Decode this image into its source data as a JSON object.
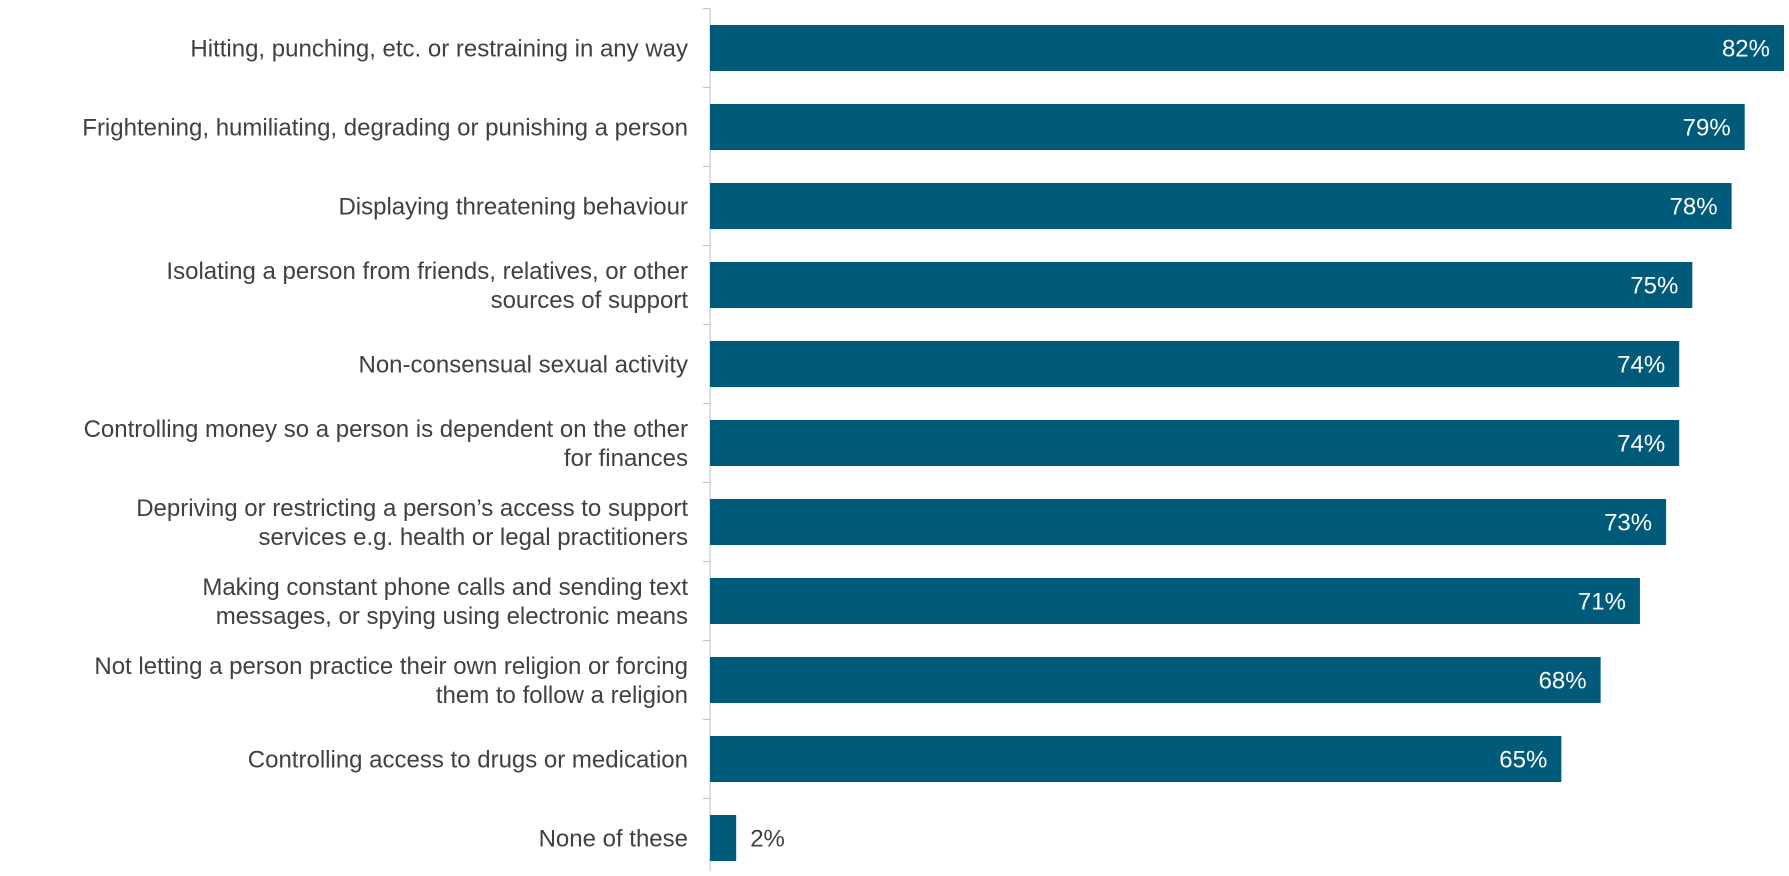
{
  "chart_data": {
    "type": "bar",
    "orientation": "horizontal",
    "categories": [
      "Hitting, punching, etc. or restraining in any way",
      "Frightening, humiliating, degrading or punishing a person",
      "Displaying threatening behaviour",
      "Isolating a person from friends, relatives, or other sources of support",
      "Non-consensual sexual activity",
      "Controlling money so a person is dependent on the other for finances",
      "Depriving or restricting a person’s access to support services e.g. health or legal practitioners",
      "Making constant phone calls and sending text messages, or spying using electronic means",
      "Not letting a person practice their own religion or forcing them to follow a religion",
      "Controlling access to drugs or medication",
      "None of these"
    ],
    "category_lines": [
      [
        "Hitting, punching, etc. or restraining in any way"
      ],
      [
        "Frightening, humiliating, degrading or punishing a person"
      ],
      [
        "Displaying threatening behaviour"
      ],
      [
        "Isolating a person from friends, relatives, or other",
        "sources of support"
      ],
      [
        "Non-consensual sexual activity"
      ],
      [
        "Controlling money so a person is dependent on the other",
        "for finances"
      ],
      [
        "Depriving or restricting a person’s access to support",
        "services e.g. health or legal practitioners"
      ],
      [
        "Making constant phone calls and sending text",
        "messages, or spying using electronic means"
      ],
      [
        "Not letting a person practice their own religion or forcing",
        "them to follow a religion"
      ],
      [
        "Controlling access to drugs or medication"
      ],
      [
        "None of these"
      ]
    ],
    "values": [
      82,
      79,
      78,
      75,
      74,
      74,
      73,
      71,
      68,
      65,
      2
    ],
    "value_labels": [
      "82%",
      "79%",
      "78%",
      "75%",
      "74%",
      "74%",
      "73%",
      "71%",
      "68%",
      "65%",
      "2%"
    ],
    "xlim": [
      0,
      82
    ],
    "unit": "%",
    "grid": false,
    "legend": "none",
    "colors": {
      "bar": "#005a7a",
      "label_text": "#404040",
      "value_inside": "#ffffff",
      "value_outside": "#404040",
      "axis": "#bfbfbf"
    }
  }
}
